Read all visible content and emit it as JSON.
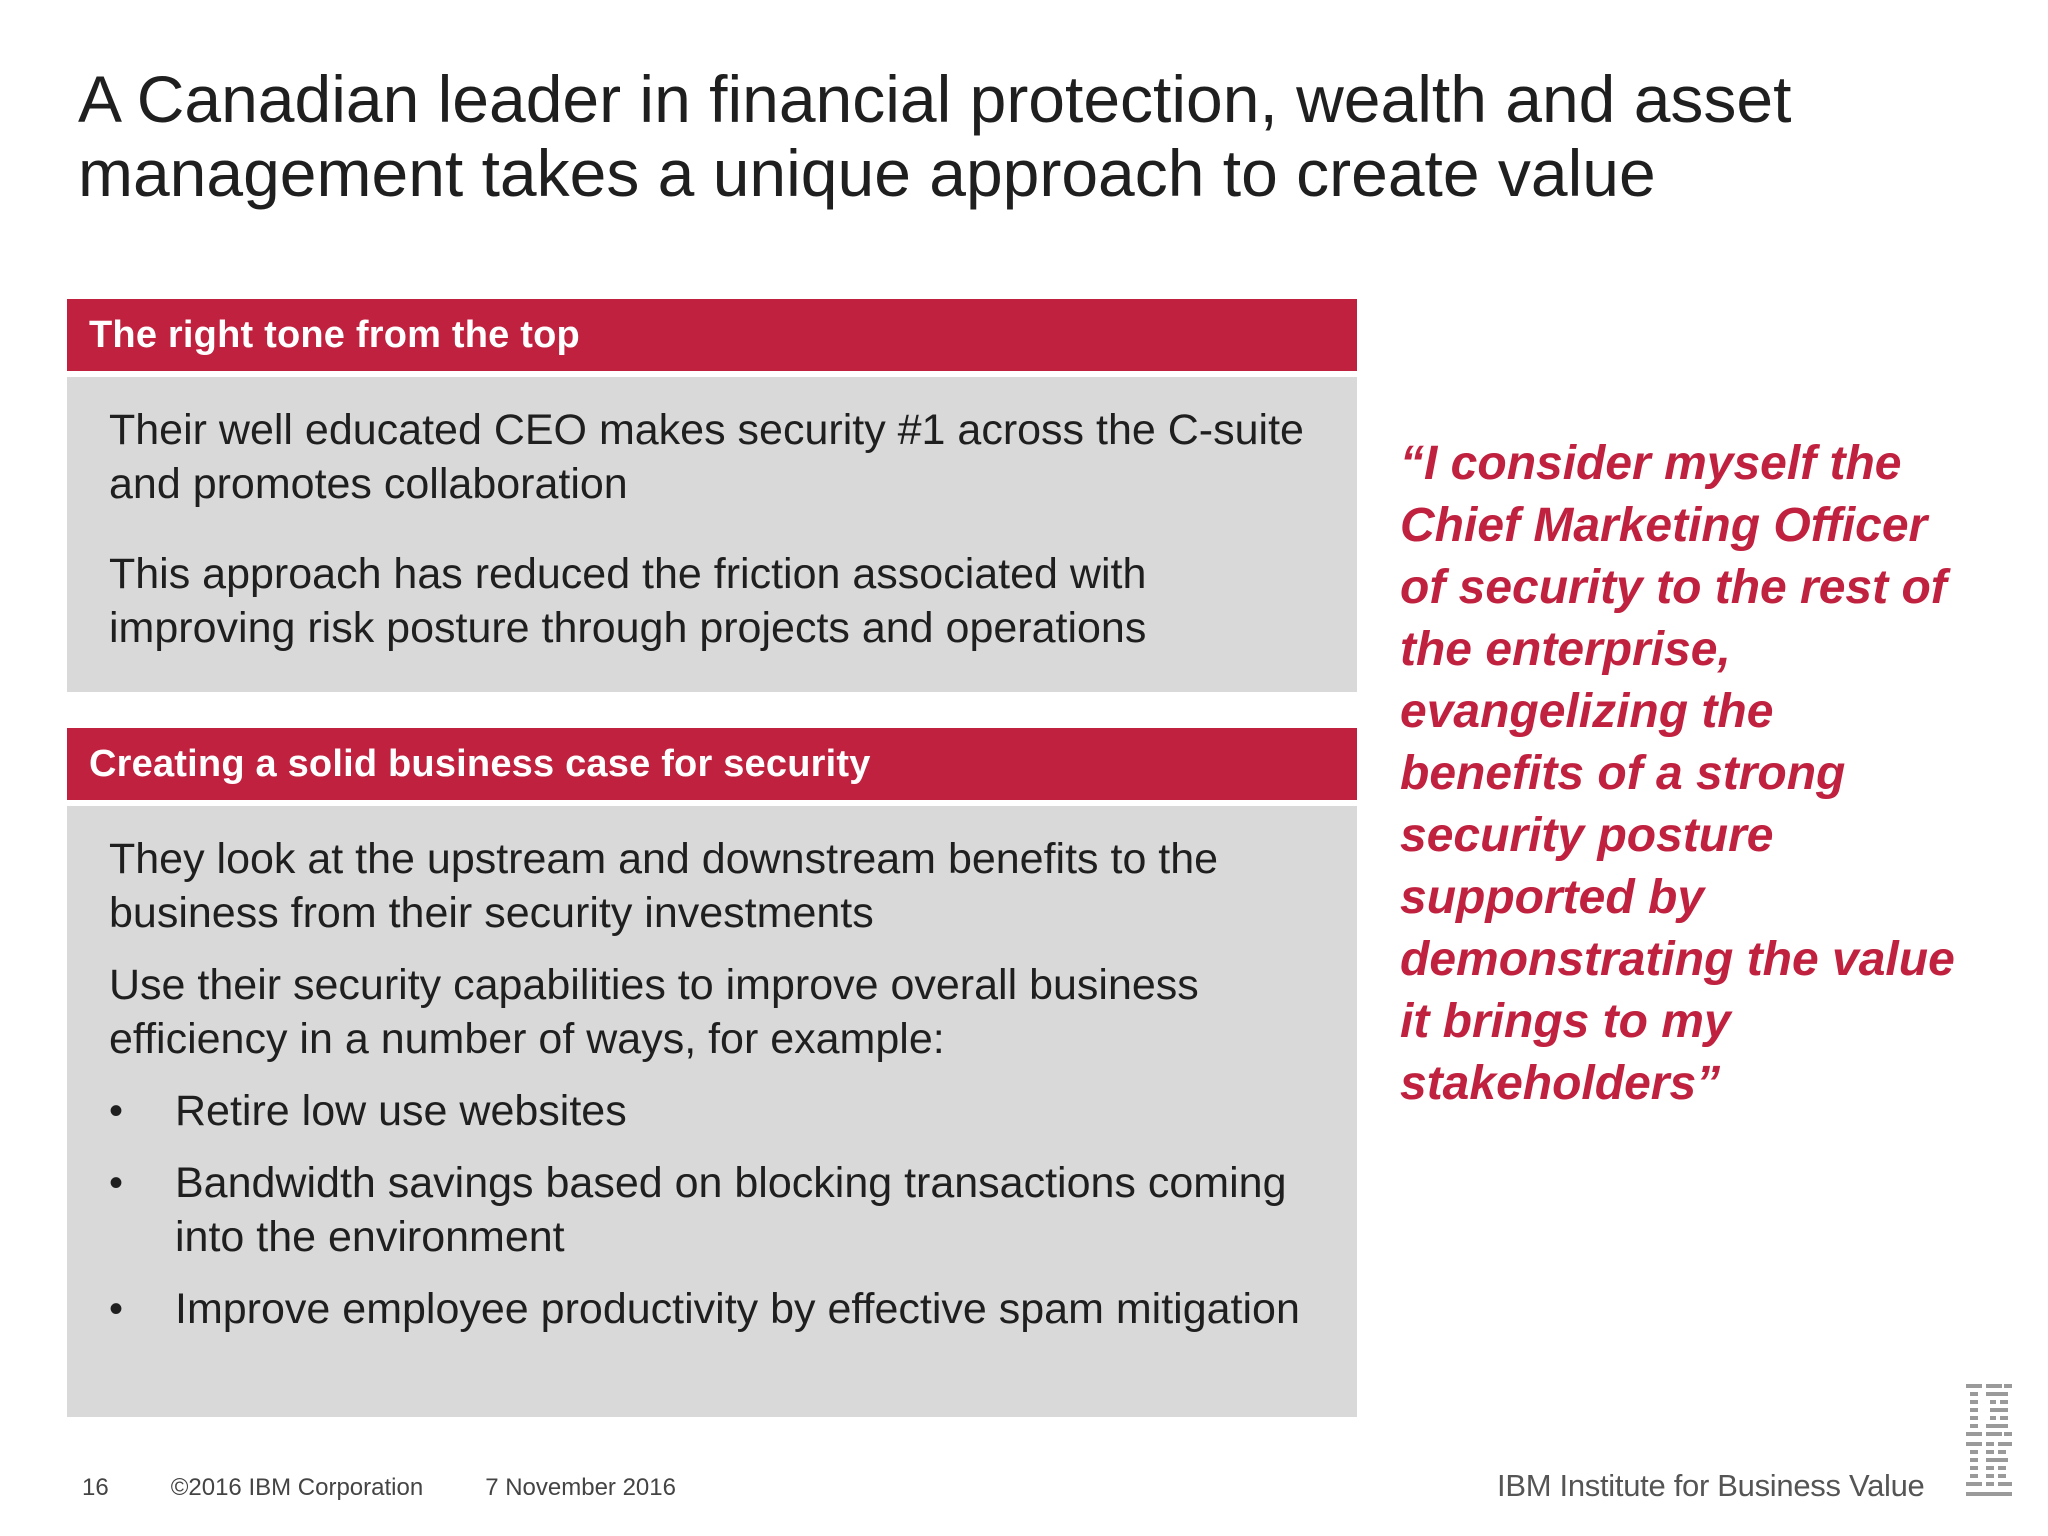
{
  "slide": {
    "title_lines": [
      "A Canadian leader in financial protection, wealth and asset",
      "management takes a unique approach to create value"
    ]
  },
  "sections": [
    {
      "header": "The right tone from the top",
      "paragraphs": [
        "Their well educated CEO makes security #1 across the C-suite and promotes collaboration",
        "This approach has reduced the friction associated with improving risk posture through projects and operations"
      ]
    },
    {
      "header": "Creating a solid business case for security",
      "paragraphs": [
        "They look at the upstream and downstream benefits to the business from their security investments",
        "Use their security capabilities to improve overall business efficiency in a number of ways, for example:"
      ],
      "bullets": [
        "Retire low use websites",
        "Bandwidth savings based on blocking transactions coming into the environment",
        "Improve employee productivity by effective spam mitigation"
      ]
    }
  ],
  "quote": {
    "lines": [
      "“I consider myself the",
      "Chief Marketing Officer",
      "of security to the rest of",
      "the enterprise,",
      "evangelizing the",
      "benefits of a strong",
      "security posture",
      "supported by",
      "demonstrating the value",
      "it brings to my",
      "stakeholders”"
    ]
  },
  "footer": {
    "page_number": "16",
    "copyright": "©2016 IBM Corporation",
    "date": "7 November 2016",
    "brand": "IBM Institute for Business Value"
  },
  "bullet_glyph": "•",
  "colors": {
    "accent": "#c0213f",
    "panel": "#d9d9d9",
    "text": "#1f1f1f"
  },
  "icons": {
    "logo": "ibm-logo-icon"
  }
}
